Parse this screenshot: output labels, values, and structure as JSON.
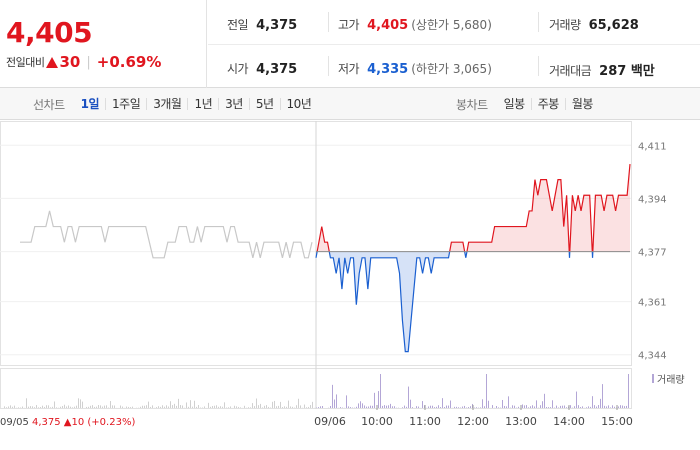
{
  "quote": {
    "price": "4,405",
    "change_label": "전일대비",
    "change_amount": "30",
    "change_pct": "+0.69%",
    "prev_close_label": "전일",
    "prev_close": "4,375",
    "open_label": "시가",
    "open": "4,375",
    "high_label": "고가",
    "high": "4,405",
    "upper_limit": "(상한가 5,680)",
    "low_label": "저가",
    "low": "4,335",
    "lower_limit": "(하한가 3,065)",
    "volume_label": "거래량",
    "volume": "65,628",
    "trade_value_label": "거래대금",
    "trade_value": "287 백만"
  },
  "tabs": {
    "line_title": "선차트",
    "line_items": [
      "1일",
      "1주일",
      "3개월",
      "1년",
      "3년",
      "5년",
      "10년"
    ],
    "line_active": 0,
    "candle_title": "봉차트",
    "candle_items": [
      "일봉",
      "주봉",
      "월봉"
    ]
  },
  "colors": {
    "up": "#e0161f",
    "down": "#1a5fd0",
    "prev_day": "#c8c8c8",
    "volume": "#b3a6d6"
  },
  "chart_data": {
    "type": "line",
    "baseline": 4377,
    "ylim": [
      4342,
      4413
    ],
    "y_ticks": [
      "4,411",
      "4,394",
      "4,377",
      "4,361",
      "4,344"
    ],
    "y_tick_values": [
      4411,
      4394,
      4377,
      4361,
      4344
    ],
    "x_ticks": [
      "09/06",
      "10:00",
      "11:00",
      "12:00",
      "13:00",
      "14:00",
      "15:00"
    ],
    "prev_day_label": "09/05",
    "prev_day_close": "4,375",
    "prev_day_change": "10",
    "prev_day_change_pct": "(+0.23%)",
    "volume_legend": "거래량",
    "prev_day_series": [
      4380,
      4380,
      4380,
      4380,
      4385,
      4385,
      4385,
      4385,
      4390,
      4385,
      4385,
      4385,
      4380,
      4385,
      4385,
      4380,
      4385,
      4385,
      4385,
      4385,
      4385,
      4385,
      4385,
      4380,
      4385,
      4385,
      4385,
      4385,
      4385,
      4385,
      4385,
      4385,
      4385,
      4385,
      4385,
      4380,
      4375,
      4375,
      4375,
      4375,
      4380,
      4380,
      4380,
      4385,
      4385,
      4385,
      4380,
      4380,
      4385,
      4380,
      4385,
      4385,
      4385,
      4385,
      4385,
      4385,
      4380,
      4385,
      4385,
      4380,
      4380,
      4380,
      4380,
      4375,
      4380,
      4375,
      4380,
      4380,
      4380,
      4380,
      4380,
      4375,
      4380,
      4375,
      4380,
      4380,
      4380,
      4375,
      4375,
      4380
    ],
    "today_series": [
      4375,
      4380,
      4385,
      4380,
      4380,
      4375,
      4375,
      4370,
      4375,
      4365,
      4375,
      4370,
      4375,
      4375,
      4360,
      4370,
      4375,
      4375,
      4365,
      4375,
      4375,
      4375,
      4375,
      4375,
      4375,
      4375,
      4375,
      4375,
      4375,
      4370,
      4355,
      4345,
      4345,
      4355,
      4365,
      4375,
      4375,
      4370,
      4375,
      4375,
      4370,
      4375,
      4375,
      4375,
      4375,
      4375,
      4375,
      4380,
      4380,
      4380,
      4380,
      4380,
      4375,
      4380,
      4380,
      4380,
      4380,
      4380,
      4380,
      4380,
      4380,
      4380,
      4385,
      4385,
      4385,
      4385,
      4385,
      4385,
      4385,
      4385,
      4385,
      4385,
      4385,
      4385,
      4390,
      4390,
      4400,
      4395,
      4400,
      4400,
      4400,
      4395,
      4390,
      4395,
      4400,
      4400,
      4385,
      4395,
      4375,
      4395,
      4390,
      4395,
      4390,
      4395,
      4395,
      4395,
      4375,
      4395,
      4395,
      4395,
      4390,
      4395,
      4395,
      4395,
      4390,
      4395,
      4395,
      4395,
      4395,
      4405
    ]
  }
}
